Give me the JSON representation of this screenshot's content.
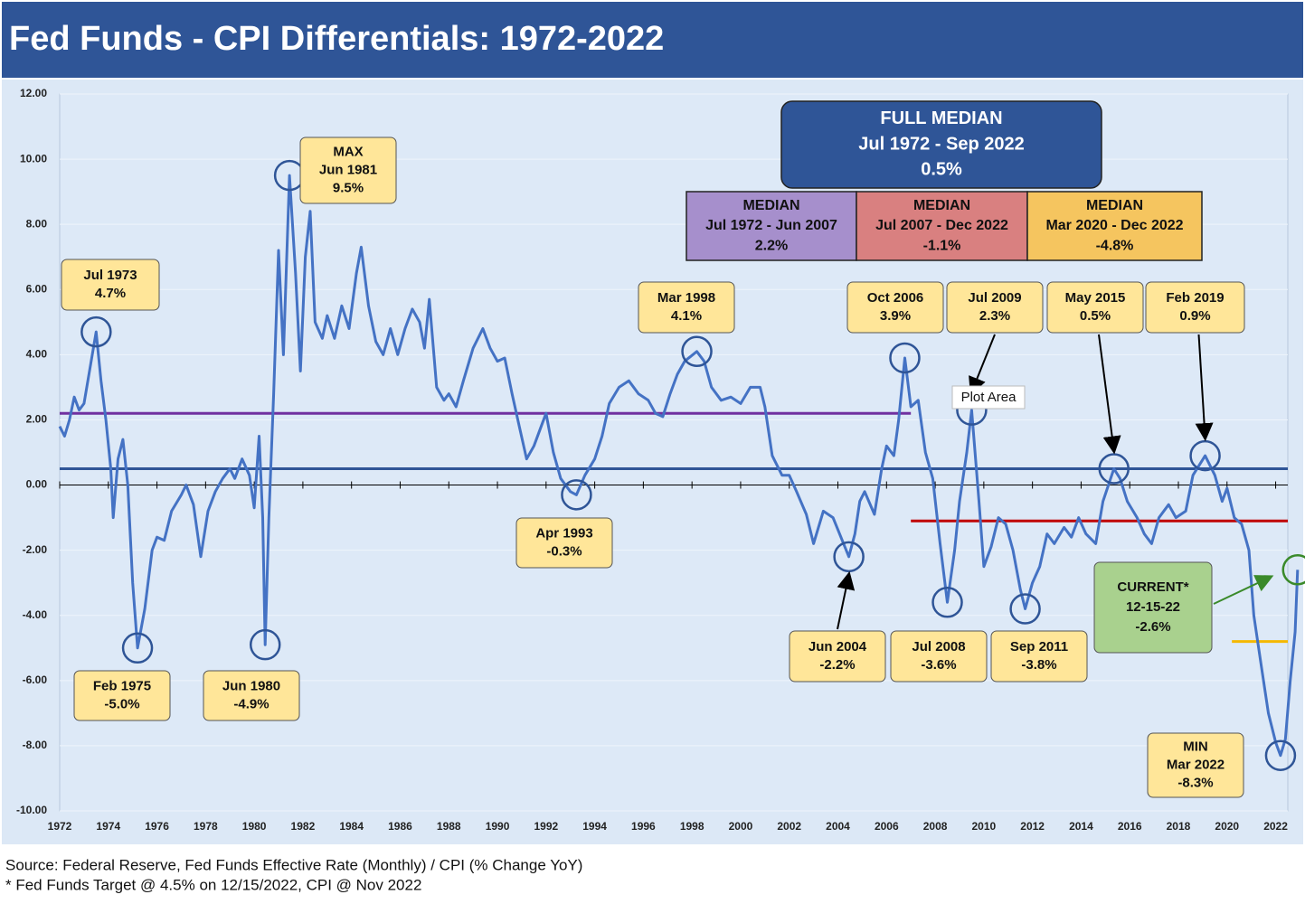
{
  "chart_data": {
    "type": "line",
    "title": "Fed Funds - CPI Differentials: 1972-2022",
    "source": [
      "Source: Federal Reserve, Fed Funds Effective Rate (Monthly) / CPI (% Change YoY)",
      "* Fed Funds Target @ 4.5% on 12/15/2022, CPI @ Nov 2022"
    ],
    "tooltip": "Plot Area",
    "xlim": [
      1972,
      2022.5
    ],
    "ylim": [
      -10,
      12
    ],
    "xticks": [
      1972,
      1974,
      1976,
      1978,
      1980,
      1982,
      1984,
      1986,
      1988,
      1990,
      1992,
      1994,
      1996,
      1998,
      2000,
      2002,
      2004,
      2006,
      2008,
      2010,
      2012,
      2014,
      2016,
      2018,
      2020,
      2022
    ],
    "yticks": [
      {
        "value": -10,
        "label": "-10.00"
      },
      {
        "value": -8,
        "label": "-8.00"
      },
      {
        "value": -6,
        "label": "-6.00"
      },
      {
        "value": -4,
        "label": "-4.00"
      },
      {
        "value": -2,
        "label": "-2.00"
      },
      {
        "value": 0,
        "label": "0.00"
      },
      {
        "value": 2,
        "label": "2.00"
      },
      {
        "value": 4,
        "label": "4.00"
      },
      {
        "value": 6,
        "label": "6.00"
      },
      {
        "value": 8,
        "label": "8.00"
      },
      {
        "value": 10,
        "label": "10.00"
      },
      {
        "value": 12,
        "label": "12.00"
      }
    ],
    "grid": true,
    "series": [
      {
        "color": "#4472c4",
        "x": [
          1972.0,
          1972.2,
          1972.4,
          1972.6,
          1972.8,
          1973.0,
          1973.5,
          1973.7,
          1973.9,
          1974.1,
          1974.2,
          1974.4,
          1974.6,
          1974.8,
          1975.0,
          1975.2,
          1975.5,
          1975.8,
          1976.0,
          1976.3,
          1976.6,
          1977.0,
          1977.2,
          1977.5,
          1977.8,
          1978.1,
          1978.4,
          1978.7,
          1979.0,
          1979.2,
          1979.5,
          1979.8,
          1980.0,
          1980.2,
          1980.35,
          1980.45,
          1980.6,
          1980.8,
          1981.0,
          1981.2,
          1981.45,
          1981.7,
          1981.9,
          1982.1,
          1982.3,
          1982.5,
          1982.8,
          1983.0,
          1983.3,
          1983.6,
          1983.9,
          1984.2,
          1984.4,
          1984.7,
          1985.0,
          1985.3,
          1985.6,
          1985.9,
          1986.2,
          1986.5,
          1986.8,
          1987.0,
          1987.2,
          1987.5,
          1987.8,
          1988.0,
          1988.3,
          1988.6,
          1989.0,
          1989.4,
          1989.7,
          1990.0,
          1990.3,
          1990.6,
          1990.9,
          1991.2,
          1991.5,
          1991.8,
          1992.0,
          1992.3,
          1992.6,
          1993.0,
          1993.25,
          1993.6,
          1994.0,
          1994.3,
          1994.6,
          1995.0,
          1995.4,
          1995.8,
          1996.2,
          1996.5,
          1996.8,
          1997.1,
          1997.4,
          1997.7,
          1998.2,
          1998.5,
          1998.8,
          1999.2,
          1999.6,
          2000.0,
          2000.4,
          2000.8,
          2001.0,
          2001.3,
          2001.7,
          2002.0,
          2002.3,
          2002.7,
          2003.0,
          2003.4,
          2003.8,
          2004.45,
          2004.7,
          2004.9,
          2005.1,
          2005.5,
          2005.8,
          2006.0,
          2006.3,
          2006.5,
          2006.75,
          2007.0,
          2007.3,
          2007.6,
          2007.9,
          2008.2,
          2008.5,
          2008.8,
          2009.0,
          2009.3,
          2009.5,
          2009.8,
          2010.0,
          2010.3,
          2010.6,
          2010.9,
          2011.2,
          2011.5,
          2011.7,
          2012.0,
          2012.3,
          2012.6,
          2012.9,
          2013.3,
          2013.6,
          2013.9,
          2014.2,
          2014.6,
          2014.9,
          2015.35,
          2015.6,
          2015.9,
          2016.3,
          2016.6,
          2016.9,
          2017.2,
          2017.6,
          2017.9,
          2018.3,
          2018.6,
          2019.1,
          2019.5,
          2019.8,
          2020.0,
          2020.3,
          2020.6,
          2020.9,
          2021.1,
          2021.4,
          2021.7,
          2022.0,
          2022.2,
          2022.4,
          2022.6,
          2022.8,
          2022.9
        ],
        "values": [
          1.8,
          1.5,
          2.0,
          2.7,
          2.3,
          2.5,
          4.7,
          3.2,
          2.0,
          0.5,
          -1.0,
          0.8,
          1.4,
          0.0,
          -3.0,
          -5.0,
          -3.8,
          -2.0,
          -1.6,
          -1.7,
          -0.8,
          -0.3,
          0.0,
          -0.6,
          -2.2,
          -0.8,
          -0.2,
          0.2,
          0.5,
          0.2,
          0.8,
          0.3,
          -0.7,
          1.5,
          -1.0,
          -4.9,
          -1.0,
          2.8,
          7.2,
          4.0,
          9.5,
          6.5,
          3.5,
          7.0,
          8.4,
          5.0,
          4.5,
          5.2,
          4.5,
          5.5,
          4.8,
          6.5,
          7.3,
          5.5,
          4.4,
          4.0,
          4.8,
          4.0,
          4.8,
          5.4,
          5.0,
          4.2,
          5.7,
          3.0,
          2.6,
          2.8,
          2.4,
          3.2,
          4.2,
          4.8,
          4.2,
          3.8,
          3.9,
          2.8,
          1.8,
          0.8,
          1.2,
          1.8,
          2.2,
          1.0,
          0.2,
          -0.2,
          -0.3,
          0.3,
          0.8,
          1.5,
          2.5,
          3.0,
          3.2,
          2.8,
          2.6,
          2.2,
          2.1,
          2.8,
          3.4,
          3.8,
          4.1,
          3.8,
          3.0,
          2.6,
          2.7,
          2.5,
          3.0,
          3.0,
          2.4,
          0.9,
          0.3,
          0.3,
          -0.2,
          -0.9,
          -1.8,
          -0.8,
          -1.0,
          -2.2,
          -1.5,
          -0.5,
          -0.2,
          -0.9,
          0.5,
          1.2,
          0.9,
          2.0,
          3.9,
          2.4,
          2.6,
          1.0,
          0.2,
          -1.8,
          -3.6,
          -2.0,
          -0.5,
          1.0,
          2.3,
          -0.5,
          -2.5,
          -1.9,
          -1.0,
          -1.2,
          -2.0,
          -3.2,
          -3.8,
          -3.0,
          -2.5,
          -1.5,
          -1.8,
          -1.3,
          -1.6,
          -1.0,
          -1.5,
          -1.8,
          -0.5,
          0.5,
          0.2,
          -0.5,
          -1.0,
          -1.5,
          -1.8,
          -1.0,
          -0.6,
          -1.0,
          -0.8,
          0.3,
          0.9,
          0.3,
          -0.5,
          -0.1,
          -1.0,
          -1.2,
          -2.0,
          -4.0,
          -5.5,
          -7.0,
          -7.9,
          -8.3,
          -7.8,
          -6.0,
          -4.5,
          -2.6
        ]
      }
    ],
    "reference_lines": [
      {
        "lines": [
          "FULL MEDIAN",
          "Jul 1972 - Sep 2022",
          "0.5%"
        ],
        "value": 0.5,
        "start": 1972,
        "end": 2022.5,
        "color": "#2f5597",
        "box_color": "#2f5597"
      },
      {
        "lines": [
          "MEDIAN",
          "Jul 1972 - Jun 2007",
          "2.2%"
        ],
        "value": 2.2,
        "start": 1972,
        "end": 2007,
        "color": "#7030a0",
        "box_color": "#a68fcc"
      },
      {
        "lines": [
          "MEDIAN",
          "Jul 2007 - Dec 2022",
          "-1.1%"
        ],
        "value": -1.1,
        "start": 2007,
        "end": 2022.5,
        "color": "#c00000",
        "box_color": "#d98080"
      },
      {
        "lines": [
          "MEDIAN",
          "Mar 2020 - Dec 2022",
          "-4.8%"
        ],
        "value": -4.8,
        "start": 2020.2,
        "end": 2022.5,
        "color": "#f5b800",
        "box_color": "#f5c55f"
      }
    ],
    "annotations": [
      {
        "lines": [
          "Jul 1973",
          "4.7%"
        ],
        "x": 1973.5,
        "y": 4.7
      },
      {
        "lines": [
          "Feb 1975",
          "-5.0%"
        ],
        "x": 1975.2,
        "y": -5.0
      },
      {
        "lines": [
          "MAX",
          "Jun 1981",
          "9.5%"
        ],
        "x": 1981.45,
        "y": 9.5
      },
      {
        "lines": [
          "Jun 1980",
          "-4.9%"
        ],
        "x": 1980.45,
        "y": -4.9
      },
      {
        "lines": [
          "Apr 1993",
          "-0.3%"
        ],
        "x": 1993.25,
        "y": -0.3
      },
      {
        "lines": [
          "Mar 1998",
          "4.1%"
        ],
        "x": 1998.2,
        "y": 4.1
      },
      {
        "lines": [
          "Jun 2004",
          "-2.2%"
        ],
        "x": 2004.45,
        "y": -2.2
      },
      {
        "lines": [
          "Oct 2006",
          "3.9%"
        ],
        "x": 2006.75,
        "y": 3.9
      },
      {
        "lines": [
          "Jul 2008",
          "-3.6%"
        ],
        "x": 2008.5,
        "y": -3.6
      },
      {
        "lines": [
          "Jul 2009",
          "2.3%"
        ],
        "x": 2009.5,
        "y": 2.3
      },
      {
        "lines": [
          "Sep 2011",
          "-3.8%"
        ],
        "x": 2011.7,
        "y": -3.8
      },
      {
        "lines": [
          "May 2015",
          "0.5%"
        ],
        "x": 2015.35,
        "y": 0.5
      },
      {
        "lines": [
          "Feb 2019",
          "0.9%"
        ],
        "x": 2019.1,
        "y": 0.9
      },
      {
        "lines": [
          "MIN",
          "Mar 2022",
          "-8.3%"
        ],
        "x": 2022.2,
        "y": -8.3
      },
      {
        "lines": [
          "CURRENT*",
          "12-15-22",
          "-2.6%"
        ],
        "x": 2022.9,
        "y": -2.6
      }
    ]
  }
}
